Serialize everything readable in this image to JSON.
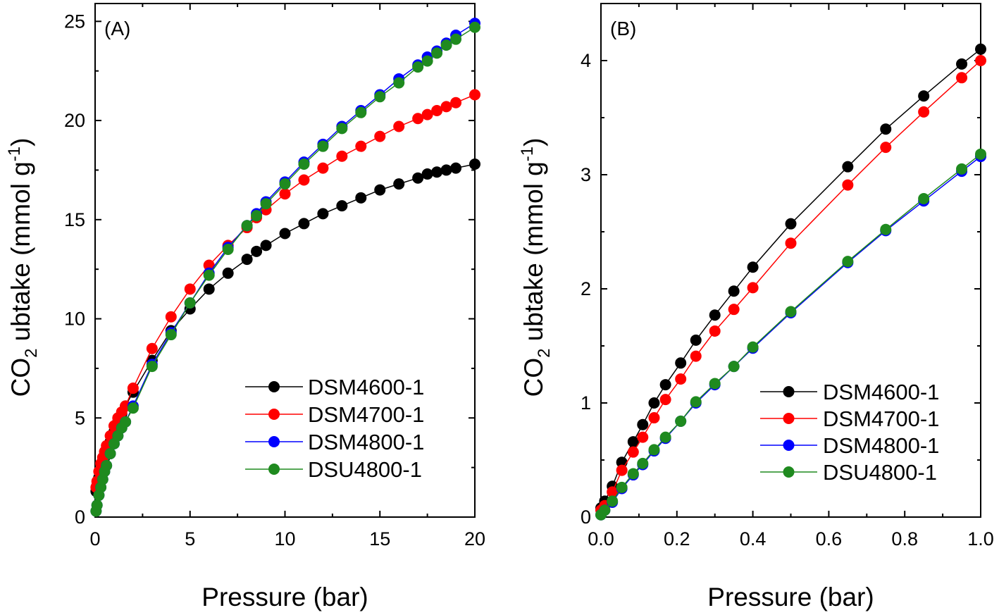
{
  "colors": {
    "DSM4600-1": "#000000",
    "DSM4700-1": "#ff0000",
    "DSM4800-1": "#0000ff",
    "DSU4800-1": "#1f8a1f"
  },
  "chart_data": [
    {
      "panel_label": "(A)",
      "type": "line",
      "xlabel": "Pressure (bar)",
      "ylabel_main": "CO",
      "ylabel_sub": "2",
      "ylabel_rest": " ubtake (mmol g",
      "ylabel_sup": "-1",
      "ylabel_close": ")",
      "xlim": [
        0,
        20
      ],
      "ylim": [
        0,
        25.9
      ],
      "xticks": [
        0,
        5,
        10,
        15,
        20
      ],
      "xtick_labels": [
        "0",
        "5",
        "10",
        "15",
        "20"
      ],
      "yticks": [
        0,
        5,
        10,
        15,
        20,
        25
      ],
      "ytick_labels": [
        "0",
        "5",
        "10",
        "15",
        "20",
        "25"
      ],
      "legend_position": "bottom-right",
      "series": [
        {
          "name": "DSM4600-1",
          "x": [
            0.05,
            0.1,
            0.2,
            0.3,
            0.4,
            0.5,
            0.6,
            0.8,
            1.0,
            1.2,
            1.4,
            1.6,
            2,
            3,
            4,
            5,
            6,
            7,
            8,
            8.5,
            9,
            10,
            11,
            12,
            13,
            14,
            15,
            16,
            17,
            17.5,
            18,
            18.5,
            19,
            20
          ],
          "y": [
            1.3,
            1.6,
            2.0,
            2.4,
            2.7,
            3.0,
            3.3,
            3.8,
            4.3,
            4.8,
            5.2,
            5.6,
            6.3,
            7.9,
            9.4,
            10.5,
            11.5,
            12.3,
            13.0,
            13.4,
            13.7,
            14.3,
            14.8,
            15.3,
            15.7,
            16.1,
            16.5,
            16.8,
            17.1,
            17.3,
            17.4,
            17.5,
            17.6,
            17.8
          ]
        },
        {
          "name": "DSM4700-1",
          "x": [
            0.05,
            0.1,
            0.2,
            0.3,
            0.4,
            0.5,
            0.6,
            0.8,
            1.0,
            1.2,
            1.4,
            1.6,
            2,
            3,
            4,
            5,
            6,
            7,
            8,
            8.5,
            9,
            10,
            11,
            12,
            13,
            14,
            15,
            16,
            17,
            17.5,
            18,
            18.5,
            19,
            20
          ],
          "y": [
            1.5,
            1.8,
            2.3,
            2.7,
            3.0,
            3.3,
            3.6,
            4.1,
            4.6,
            5.0,
            5.3,
            5.6,
            6.5,
            8.5,
            10.1,
            11.5,
            12.7,
            13.7,
            14.6,
            15.1,
            15.5,
            16.3,
            17.0,
            17.6,
            18.2,
            18.7,
            19.2,
            19.7,
            20.1,
            20.3,
            20.5,
            20.7,
            20.9,
            21.3
          ]
        },
        {
          "name": "DSM4800-1",
          "x": [
            0.05,
            0.1,
            0.2,
            0.3,
            0.4,
            0.5,
            0.6,
            0.8,
            1.0,
            1.2,
            1.4,
            1.6,
            2,
            3,
            4,
            5,
            6,
            7,
            8,
            8.5,
            9,
            10,
            11,
            12,
            13,
            14,
            15,
            16,
            17,
            17.5,
            18,
            18.5,
            19,
            20
          ],
          "y": [
            0.3,
            0.6,
            1.1,
            1.5,
            1.9,
            2.3,
            2.6,
            3.2,
            3.7,
            4.1,
            4.5,
            4.8,
            5.6,
            7.7,
            9.3,
            10.8,
            12.3,
            13.6,
            14.7,
            15.3,
            15.9,
            16.9,
            17.9,
            18.8,
            19.7,
            20.5,
            21.3,
            22.1,
            22.8,
            23.2,
            23.5,
            23.9,
            24.3,
            24.9
          ]
        },
        {
          "name": "DSU4800-1",
          "x": [
            0.05,
            0.1,
            0.2,
            0.3,
            0.4,
            0.5,
            0.6,
            0.8,
            1.0,
            1.2,
            1.4,
            1.6,
            2,
            3,
            4,
            5,
            6,
            7,
            8,
            8.5,
            9,
            10,
            11,
            12,
            13,
            14,
            15,
            16,
            17,
            17.5,
            18,
            18.5,
            19,
            20
          ],
          "y": [
            0.3,
            0.6,
            1.1,
            1.5,
            1.9,
            2.3,
            2.6,
            3.2,
            3.7,
            4.1,
            4.5,
            4.8,
            5.5,
            7.6,
            9.2,
            10.8,
            12.2,
            13.5,
            14.7,
            15.2,
            15.8,
            16.8,
            17.8,
            18.7,
            19.6,
            20.4,
            21.2,
            21.9,
            22.7,
            23.0,
            23.4,
            23.8,
            24.1,
            24.7
          ]
        }
      ]
    },
    {
      "panel_label": "(B)",
      "type": "line",
      "xlabel": "Pressure (bar)",
      "ylabel_main": "CO",
      "ylabel_sub": "2",
      "ylabel_rest": " ubtake (mmol g",
      "ylabel_sup": "-1",
      "ylabel_close": ")",
      "xlim": [
        0,
        1.0
      ],
      "ylim": [
        0,
        4.5
      ],
      "xticks": [
        0,
        0.2,
        0.4,
        0.6,
        0.8,
        1.0
      ],
      "xtick_labels": [
        "0.0",
        "0.2",
        "0.4",
        "0.6",
        "0.8",
        "1.0"
      ],
      "yticks": [
        0,
        1,
        2,
        3,
        4
      ],
      "ytick_labels": [
        "0",
        "1",
        "2",
        "3",
        "4"
      ],
      "legend_position": "bottom-right",
      "series": [
        {
          "name": "DSM4600-1",
          "x": [
            0,
            0.01,
            0.03,
            0.055,
            0.085,
            0.11,
            0.14,
            0.17,
            0.21,
            0.25,
            0.3,
            0.35,
            0.4,
            0.5,
            0.65,
            0.75,
            0.85,
            0.95,
            1.0
          ],
          "y": [
            0.08,
            0.14,
            0.27,
            0.48,
            0.66,
            0.81,
            1.0,
            1.16,
            1.35,
            1.55,
            1.77,
            1.98,
            2.19,
            2.57,
            3.07,
            3.4,
            3.69,
            3.97,
            4.1
          ]
        },
        {
          "name": "DSM4700-1",
          "x": [
            0,
            0.01,
            0.03,
            0.055,
            0.085,
            0.11,
            0.14,
            0.17,
            0.21,
            0.25,
            0.3,
            0.35,
            0.4,
            0.5,
            0.65,
            0.75,
            0.85,
            0.95,
            1.0
          ],
          "y": [
            0.06,
            0.1,
            0.22,
            0.41,
            0.57,
            0.7,
            0.87,
            1.03,
            1.21,
            1.41,
            1.63,
            1.82,
            2.01,
            2.4,
            2.91,
            3.24,
            3.55,
            3.85,
            4.0
          ]
        },
        {
          "name": "DSM4800-1",
          "x": [
            0,
            0.01,
            0.03,
            0.055,
            0.085,
            0.11,
            0.14,
            0.17,
            0.21,
            0.25,
            0.3,
            0.35,
            0.4,
            0.5,
            0.65,
            0.75,
            0.85,
            0.95,
            1.0
          ],
          "y": [
            0.02,
            0.06,
            0.13,
            0.25,
            0.37,
            0.46,
            0.58,
            0.69,
            0.84,
            1.0,
            1.16,
            1.32,
            1.48,
            1.79,
            2.23,
            2.51,
            2.77,
            3.03,
            3.16
          ]
        },
        {
          "name": "DSU4800-1",
          "x": [
            0,
            0.01,
            0.03,
            0.055,
            0.085,
            0.11,
            0.14,
            0.17,
            0.21,
            0.25,
            0.3,
            0.35,
            0.4,
            0.5,
            0.65,
            0.75,
            0.85,
            0.95,
            1.0
          ],
          "y": [
            0.02,
            0.06,
            0.14,
            0.26,
            0.38,
            0.47,
            0.59,
            0.7,
            0.84,
            1.01,
            1.17,
            1.32,
            1.49,
            1.8,
            2.24,
            2.52,
            2.79,
            3.05,
            3.18
          ]
        }
      ]
    }
  ]
}
